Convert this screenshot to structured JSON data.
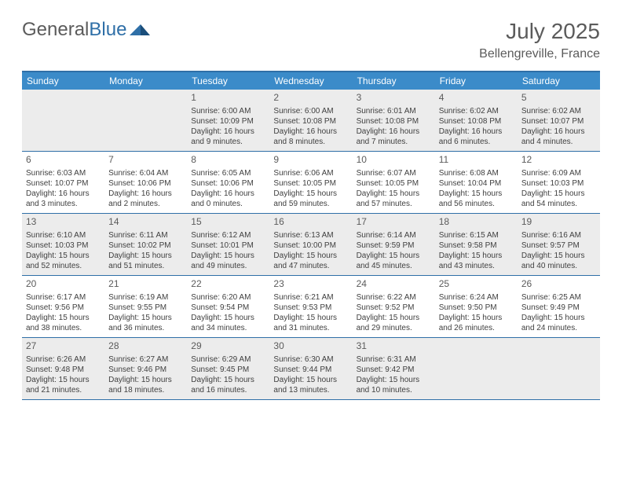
{
  "logo": {
    "part1": "General",
    "part2": "Blue"
  },
  "title": "July 2025",
  "location": "Bellengreville, France",
  "colors": {
    "header_bg": "#3b8bc9",
    "border": "#2f6fa7",
    "alt_bg": "#ececec",
    "text": "#404040",
    "muted": "#5b5b5b"
  },
  "days_of_week": [
    "Sunday",
    "Monday",
    "Tuesday",
    "Wednesday",
    "Thursday",
    "Friday",
    "Saturday"
  ],
  "weeks": [
    [
      {
        "n": "",
        "sr": "",
        "ss": "",
        "dl": ""
      },
      {
        "n": "",
        "sr": "",
        "ss": "",
        "dl": ""
      },
      {
        "n": "1",
        "sr": "Sunrise: 6:00 AM",
        "ss": "Sunset: 10:09 PM",
        "dl": "Daylight: 16 hours and 9 minutes."
      },
      {
        "n": "2",
        "sr": "Sunrise: 6:00 AM",
        "ss": "Sunset: 10:08 PM",
        "dl": "Daylight: 16 hours and 8 minutes."
      },
      {
        "n": "3",
        "sr": "Sunrise: 6:01 AM",
        "ss": "Sunset: 10:08 PM",
        "dl": "Daylight: 16 hours and 7 minutes."
      },
      {
        "n": "4",
        "sr": "Sunrise: 6:02 AM",
        "ss": "Sunset: 10:08 PM",
        "dl": "Daylight: 16 hours and 6 minutes."
      },
      {
        "n": "5",
        "sr": "Sunrise: 6:02 AM",
        "ss": "Sunset: 10:07 PM",
        "dl": "Daylight: 16 hours and 4 minutes."
      }
    ],
    [
      {
        "n": "6",
        "sr": "Sunrise: 6:03 AM",
        "ss": "Sunset: 10:07 PM",
        "dl": "Daylight: 16 hours and 3 minutes."
      },
      {
        "n": "7",
        "sr": "Sunrise: 6:04 AM",
        "ss": "Sunset: 10:06 PM",
        "dl": "Daylight: 16 hours and 2 minutes."
      },
      {
        "n": "8",
        "sr": "Sunrise: 6:05 AM",
        "ss": "Sunset: 10:06 PM",
        "dl": "Daylight: 16 hours and 0 minutes."
      },
      {
        "n": "9",
        "sr": "Sunrise: 6:06 AM",
        "ss": "Sunset: 10:05 PM",
        "dl": "Daylight: 15 hours and 59 minutes."
      },
      {
        "n": "10",
        "sr": "Sunrise: 6:07 AM",
        "ss": "Sunset: 10:05 PM",
        "dl": "Daylight: 15 hours and 57 minutes."
      },
      {
        "n": "11",
        "sr": "Sunrise: 6:08 AM",
        "ss": "Sunset: 10:04 PM",
        "dl": "Daylight: 15 hours and 56 minutes."
      },
      {
        "n": "12",
        "sr": "Sunrise: 6:09 AM",
        "ss": "Sunset: 10:03 PM",
        "dl": "Daylight: 15 hours and 54 minutes."
      }
    ],
    [
      {
        "n": "13",
        "sr": "Sunrise: 6:10 AM",
        "ss": "Sunset: 10:03 PM",
        "dl": "Daylight: 15 hours and 52 minutes."
      },
      {
        "n": "14",
        "sr": "Sunrise: 6:11 AM",
        "ss": "Sunset: 10:02 PM",
        "dl": "Daylight: 15 hours and 51 minutes."
      },
      {
        "n": "15",
        "sr": "Sunrise: 6:12 AM",
        "ss": "Sunset: 10:01 PM",
        "dl": "Daylight: 15 hours and 49 minutes."
      },
      {
        "n": "16",
        "sr": "Sunrise: 6:13 AM",
        "ss": "Sunset: 10:00 PM",
        "dl": "Daylight: 15 hours and 47 minutes."
      },
      {
        "n": "17",
        "sr": "Sunrise: 6:14 AM",
        "ss": "Sunset: 9:59 PM",
        "dl": "Daylight: 15 hours and 45 minutes."
      },
      {
        "n": "18",
        "sr": "Sunrise: 6:15 AM",
        "ss": "Sunset: 9:58 PM",
        "dl": "Daylight: 15 hours and 43 minutes."
      },
      {
        "n": "19",
        "sr": "Sunrise: 6:16 AM",
        "ss": "Sunset: 9:57 PM",
        "dl": "Daylight: 15 hours and 40 minutes."
      }
    ],
    [
      {
        "n": "20",
        "sr": "Sunrise: 6:17 AM",
        "ss": "Sunset: 9:56 PM",
        "dl": "Daylight: 15 hours and 38 minutes."
      },
      {
        "n": "21",
        "sr": "Sunrise: 6:19 AM",
        "ss": "Sunset: 9:55 PM",
        "dl": "Daylight: 15 hours and 36 minutes."
      },
      {
        "n": "22",
        "sr": "Sunrise: 6:20 AM",
        "ss": "Sunset: 9:54 PM",
        "dl": "Daylight: 15 hours and 34 minutes."
      },
      {
        "n": "23",
        "sr": "Sunrise: 6:21 AM",
        "ss": "Sunset: 9:53 PM",
        "dl": "Daylight: 15 hours and 31 minutes."
      },
      {
        "n": "24",
        "sr": "Sunrise: 6:22 AM",
        "ss": "Sunset: 9:52 PM",
        "dl": "Daylight: 15 hours and 29 minutes."
      },
      {
        "n": "25",
        "sr": "Sunrise: 6:24 AM",
        "ss": "Sunset: 9:50 PM",
        "dl": "Daylight: 15 hours and 26 minutes."
      },
      {
        "n": "26",
        "sr": "Sunrise: 6:25 AM",
        "ss": "Sunset: 9:49 PM",
        "dl": "Daylight: 15 hours and 24 minutes."
      }
    ],
    [
      {
        "n": "27",
        "sr": "Sunrise: 6:26 AM",
        "ss": "Sunset: 9:48 PM",
        "dl": "Daylight: 15 hours and 21 minutes."
      },
      {
        "n": "28",
        "sr": "Sunrise: 6:27 AM",
        "ss": "Sunset: 9:46 PM",
        "dl": "Daylight: 15 hours and 18 minutes."
      },
      {
        "n": "29",
        "sr": "Sunrise: 6:29 AM",
        "ss": "Sunset: 9:45 PM",
        "dl": "Daylight: 15 hours and 16 minutes."
      },
      {
        "n": "30",
        "sr": "Sunrise: 6:30 AM",
        "ss": "Sunset: 9:44 PM",
        "dl": "Daylight: 15 hours and 13 minutes."
      },
      {
        "n": "31",
        "sr": "Sunrise: 6:31 AM",
        "ss": "Sunset: 9:42 PM",
        "dl": "Daylight: 15 hours and 10 minutes."
      },
      {
        "n": "",
        "sr": "",
        "ss": "",
        "dl": ""
      },
      {
        "n": "",
        "sr": "",
        "ss": "",
        "dl": ""
      }
    ]
  ],
  "alt_weeks": [
    0,
    2,
    4
  ]
}
